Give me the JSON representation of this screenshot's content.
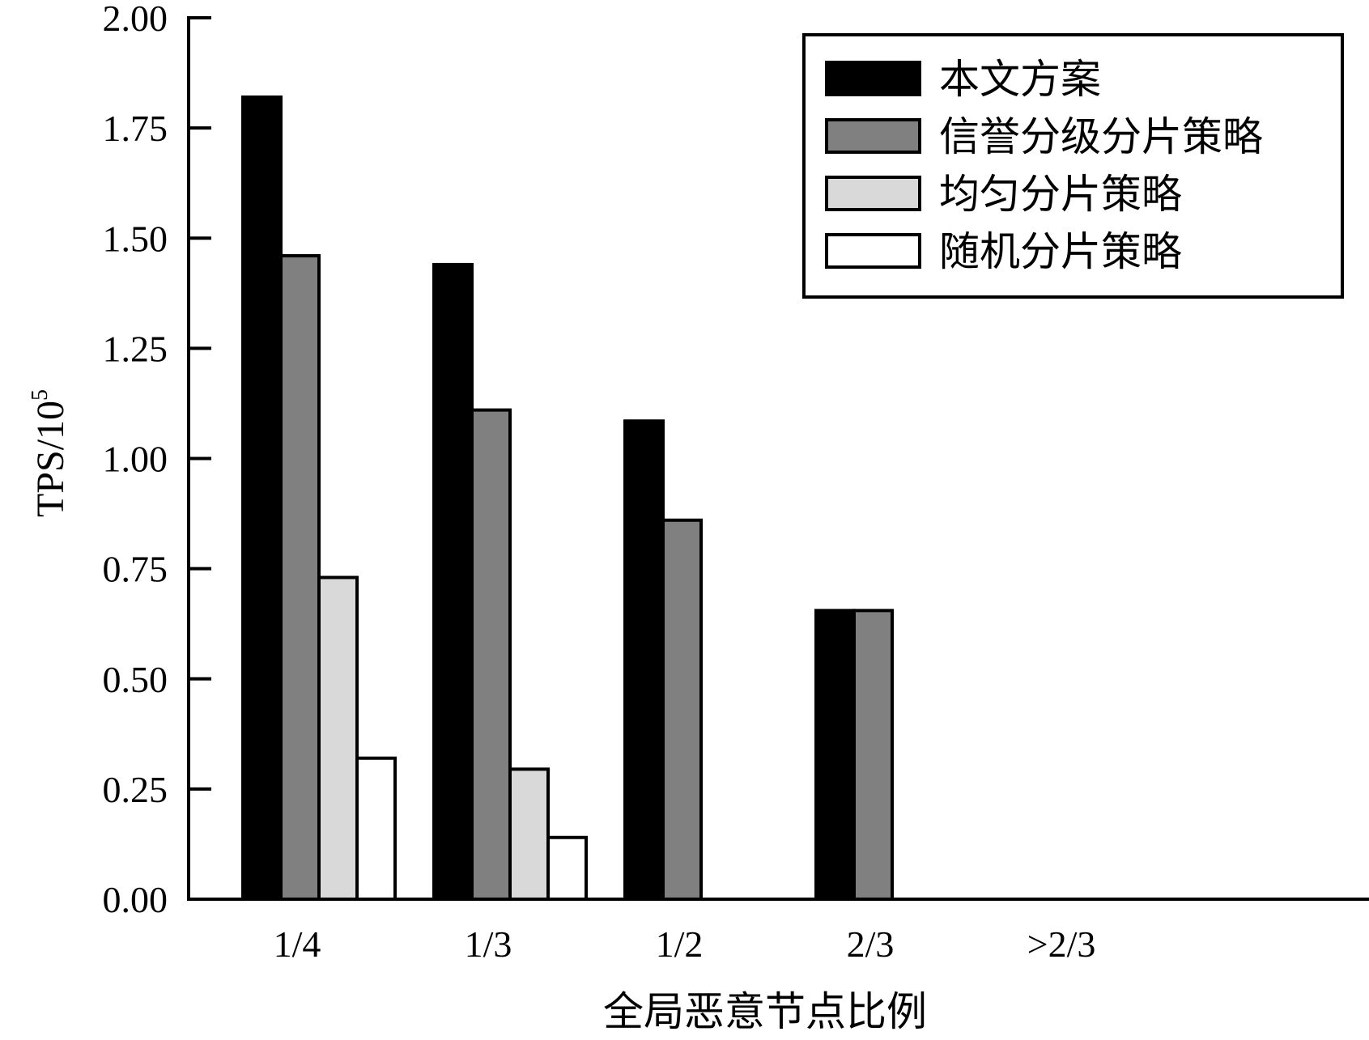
{
  "chart_data": {
    "type": "bar",
    "categories": [
      "1/4",
      "1/3",
      "1/2",
      "2/3",
      ">2/3"
    ],
    "series": [
      {
        "name": "本文方案",
        "values": [
          1.82,
          1.44,
          1.085,
          0.655,
          0
        ],
        "color": "#000000"
      },
      {
        "name": "信誉分级分片策略",
        "values": [
          1.46,
          1.11,
          0.86,
          0.655,
          0
        ],
        "color": "#808080"
      },
      {
        "name": "均匀分片策略",
        "values": [
          0.73,
          0.295,
          0,
          0,
          0
        ],
        "color": "#d9d9d9"
      },
      {
        "name": "随机分片策略",
        "values": [
          0.32,
          0.14,
          0,
          0,
          0
        ],
        "color": "#ffffff"
      }
    ],
    "title": "",
    "xlabel": "全局恶意节点比例",
    "ylabel_main": "TPS/10",
    "ylabel_sup": "5",
    "ylim": [
      0,
      2.0
    ],
    "yticks": [
      "0.00",
      "0.25",
      "0.50",
      "0.75",
      "1.00",
      "1.25",
      "1.50",
      "1.75",
      "2.00"
    ],
    "grid": false,
    "legend_position": "top-right"
  }
}
